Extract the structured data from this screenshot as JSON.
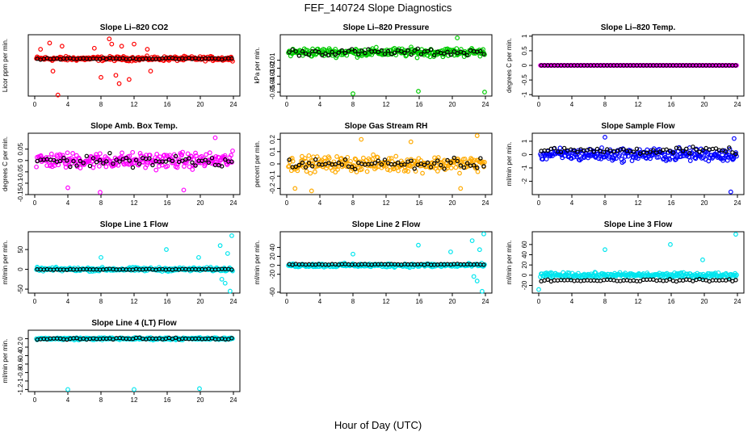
{
  "figure": {
    "title": "FEF_140724  Slope Diagnostics",
    "xlabel": "Hour of Day (UTC)",
    "colors": {
      "overlay": "#000000",
      "axes": "#000000"
    }
  },
  "chart_data": [
    {
      "type": "scatter",
      "title": "Slope Li–820 CO2",
      "ylabel": "Licor ppm per min.",
      "xlim": [
        0,
        24
      ],
      "ylim": [
        -1.8,
        1.15
      ],
      "x_ticks": [
        0,
        4,
        8,
        12,
        16,
        20,
        24
      ],
      "y_ticks": [],
      "color": "#ff0000",
      "spread": 0.15,
      "outliers": [
        [
          0.7,
          0.45
        ],
        [
          1.8,
          0.75
        ],
        [
          2.2,
          -0.6
        ],
        [
          2.8,
          -1.75
        ],
        [
          3.3,
          0.6
        ],
        [
          7.2,
          0.5
        ],
        [
          8.0,
          -0.9
        ],
        [
          9.0,
          0.95
        ],
        [
          9.3,
          0.7
        ],
        [
          9.8,
          -0.8
        ],
        [
          10.2,
          -1.2
        ],
        [
          10.5,
          0.6
        ],
        [
          11.4,
          -1.0
        ],
        [
          12.0,
          0.7
        ],
        [
          13.6,
          0.45
        ],
        [
          14.0,
          -0.6
        ]
      ],
      "overlay_value": 0.0,
      "overlay_spread": 0.05
    },
    {
      "type": "scatter",
      "title": "Slope Li–820 Pressure",
      "ylabel": "kPa per min.",
      "xlim": [
        0,
        24
      ],
      "ylim": [
        -0.055,
        0.022
      ],
      "x_ticks": [
        0,
        4,
        8,
        12,
        16,
        20,
        24
      ],
      "y_ticks": [
        -0.05,
        -0.04,
        -0.03,
        -0.02,
        -0.01
      ],
      "color": "#00cc00",
      "spread": 0.008,
      "outliers": [
        [
          8.0,
          -0.052
        ],
        [
          15.9,
          -0.049
        ],
        [
          20.6,
          0.018
        ],
        [
          23.9,
          -0.05
        ]
      ],
      "overlay_value": 0.0,
      "overlay_spread": 0.006
    },
    {
      "type": "scatter",
      "title": "Slope Li–820 Temp.",
      "ylabel": "degrees C per min.",
      "xlim": [
        0,
        24
      ],
      "ylim": [
        -1.05,
        1.05
      ],
      "x_ticks": [
        0,
        4,
        8,
        12,
        16,
        20,
        24
      ],
      "y_ticks": [
        -1.0,
        -0.5,
        0.0,
        0.5,
        1.0
      ],
      "color": "#ff00ff",
      "spread": 0.0,
      "outliers": [],
      "overlay_value": 0.0,
      "overlay_spread": 0.0
    },
    {
      "type": "scatter",
      "title": "Slope Amb. Box Temp.",
      "ylabel": "degrees C per min.",
      "xlim": [
        0,
        24
      ],
      "ylim": [
        -0.15,
        0.12
      ],
      "x_ticks": [
        0,
        4,
        8,
        12,
        16,
        20,
        24
      ],
      "y_ticks": [
        -0.15,
        -0.1,
        -0.05,
        0.0,
        0.05
      ],
      "color": "#ff00ff",
      "spread": 0.05,
      "outliers": [
        [
          4.0,
          -0.12
        ],
        [
          7.9,
          -0.14
        ],
        [
          18.0,
          -0.13
        ],
        [
          21.8,
          0.1
        ]
      ],
      "overlay_value": 0.0,
      "overlay_spread": 0.04
    },
    {
      "type": "scatter",
      "title": "Slope Gas Stream RH",
      "ylabel": "percent per min.",
      "xlim": [
        0,
        24
      ],
      "ylim": [
        -0.25,
        0.25
      ],
      "x_ticks": [
        0,
        4,
        8,
        12,
        16,
        20,
        24
      ],
      "y_ticks": [
        -0.2,
        -0.1,
        0.0,
        0.1,
        0.2
      ],
      "color": "#ffaa00",
      "spread": 0.09,
      "outliers": [
        [
          1.0,
          -0.2
        ],
        [
          3.0,
          -0.22
        ],
        [
          9.0,
          0.2
        ],
        [
          15.0,
          0.18
        ],
        [
          21.0,
          -0.2
        ],
        [
          23.0,
          0.23
        ]
      ],
      "overlay_value": 0.0,
      "overlay_spread": 0.06
    },
    {
      "type": "scatter",
      "title": "Slope Sample Flow",
      "ylabel": "ml/min per min.",
      "xlim": [
        0,
        24
      ],
      "ylim": [
        -3.0,
        1.6
      ],
      "x_ticks": [
        0,
        4,
        8,
        12,
        16,
        20,
        24
      ],
      "y_ticks": [
        -2,
        -1,
        0,
        1
      ],
      "color": "#0000ff",
      "spread": 0.7,
      "outliers": [
        [
          8.0,
          1.3
        ],
        [
          23.2,
          -2.8
        ],
        [
          23.6,
          1.2
        ]
      ],
      "overlay_value": 0.3,
      "overlay_spread": 0.35
    },
    {
      "type": "scatter",
      "title": "Slope Line 1 Flow",
      "ylabel": "ml/min per min.",
      "xlim": [
        0,
        24
      ],
      "ylim": [
        -60,
        95
      ],
      "x_ticks": [
        0,
        4,
        8,
        12,
        16,
        20,
        24
      ],
      "y_ticks": [
        -50,
        0,
        50
      ],
      "color": "#00e5ee",
      "spread": 7,
      "outliers": [
        [
          8.0,
          30
        ],
        [
          15.9,
          50
        ],
        [
          19.8,
          30
        ],
        [
          22.4,
          60
        ],
        [
          22.6,
          -25
        ],
        [
          23.0,
          -35
        ],
        [
          23.3,
          40
        ],
        [
          23.6,
          -55
        ],
        [
          23.8,
          85
        ]
      ],
      "overlay_value": 0.0,
      "overlay_spread": 1.5
    },
    {
      "type": "scatter",
      "title": "Slope Line 2 Flow",
      "ylabel": "ml/min per min.",
      "xlim": [
        0,
        24
      ],
      "ylim": [
        -62,
        75
      ],
      "x_ticks": [
        0,
        4,
        8,
        12,
        16,
        20,
        24
      ],
      "y_ticks": [
        -60,
        -20,
        0,
        20,
        40
      ],
      "color": "#00e5ee",
      "spread": 6,
      "outliers": [
        [
          8.0,
          25
        ],
        [
          15.9,
          45
        ],
        [
          19.8,
          30
        ],
        [
          22.4,
          55
        ],
        [
          22.6,
          -25
        ],
        [
          23.0,
          -35
        ],
        [
          23.3,
          35
        ],
        [
          23.6,
          -58
        ],
        [
          23.8,
          70
        ]
      ],
      "overlay_value": 2.0,
      "overlay_spread": 1.5
    },
    {
      "type": "scatter",
      "title": "Slope Line 3 Flow",
      "ylabel": "ml/min per min.",
      "xlim": [
        0,
        24
      ],
      "ylim": [
        -35,
        85
      ],
      "x_ticks": [
        0,
        4,
        8,
        12,
        16,
        20,
        24
      ],
      "y_ticks": [
        -20,
        0,
        20,
        40,
        60
      ],
      "color": "#00e5ee",
      "spread": 7,
      "outliers": [
        [
          0.0,
          -28
        ],
        [
          8.0,
          50
        ],
        [
          15.9,
          60
        ],
        [
          19.8,
          30
        ],
        [
          23.8,
          80
        ]
      ],
      "overlay_value": -10.0,
      "overlay_spread": 3
    },
    {
      "type": "scatter",
      "title": "Slope Line 4 (LT) Flow",
      "ylabel": "ml/min per min.",
      "xlim": [
        0,
        24
      ],
      "ylim": [
        -1.25,
        0.2
      ],
      "x_ticks": [
        0,
        4,
        8,
        12,
        16,
        20,
        24
      ],
      "y_ticks": [
        -1.2,
        -1.0,
        -0.8,
        -0.6,
        -0.4,
        -0.2,
        0.0
      ],
      "color": "#00e5ee",
      "spread": 0.04,
      "outliers": [
        [
          4.0,
          -1.2
        ],
        [
          12.0,
          -1.2
        ],
        [
          19.9,
          -1.18
        ]
      ],
      "overlay_value": 0.0,
      "overlay_spread": 0.03
    }
  ]
}
